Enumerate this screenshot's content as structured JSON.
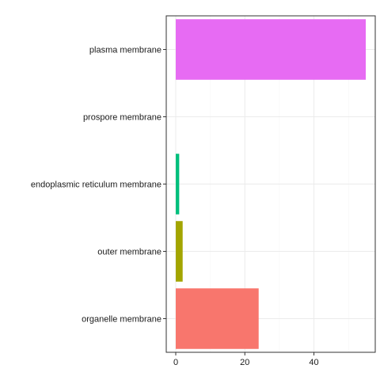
{
  "chart_data": {
    "type": "bar",
    "orientation": "horizontal",
    "title": "",
    "xlabel": "",
    "ylabel": "",
    "categories": [
      "plasma membrane",
      "prospore membrane",
      "endoplasmic reticulum membrane",
      "outer membrane",
      "organelle membrane"
    ],
    "values": [
      55,
      0,
      1,
      2,
      24
    ],
    "colors": [
      "#E76BF3",
      "#00B0F6",
      "#00BF7D",
      "#A3A500",
      "#F8766D"
    ],
    "x_ticks": [
      0,
      20,
      40
    ],
    "xlim": [
      -2.75,
      57.75
    ],
    "grid": true,
    "legend": "none"
  }
}
